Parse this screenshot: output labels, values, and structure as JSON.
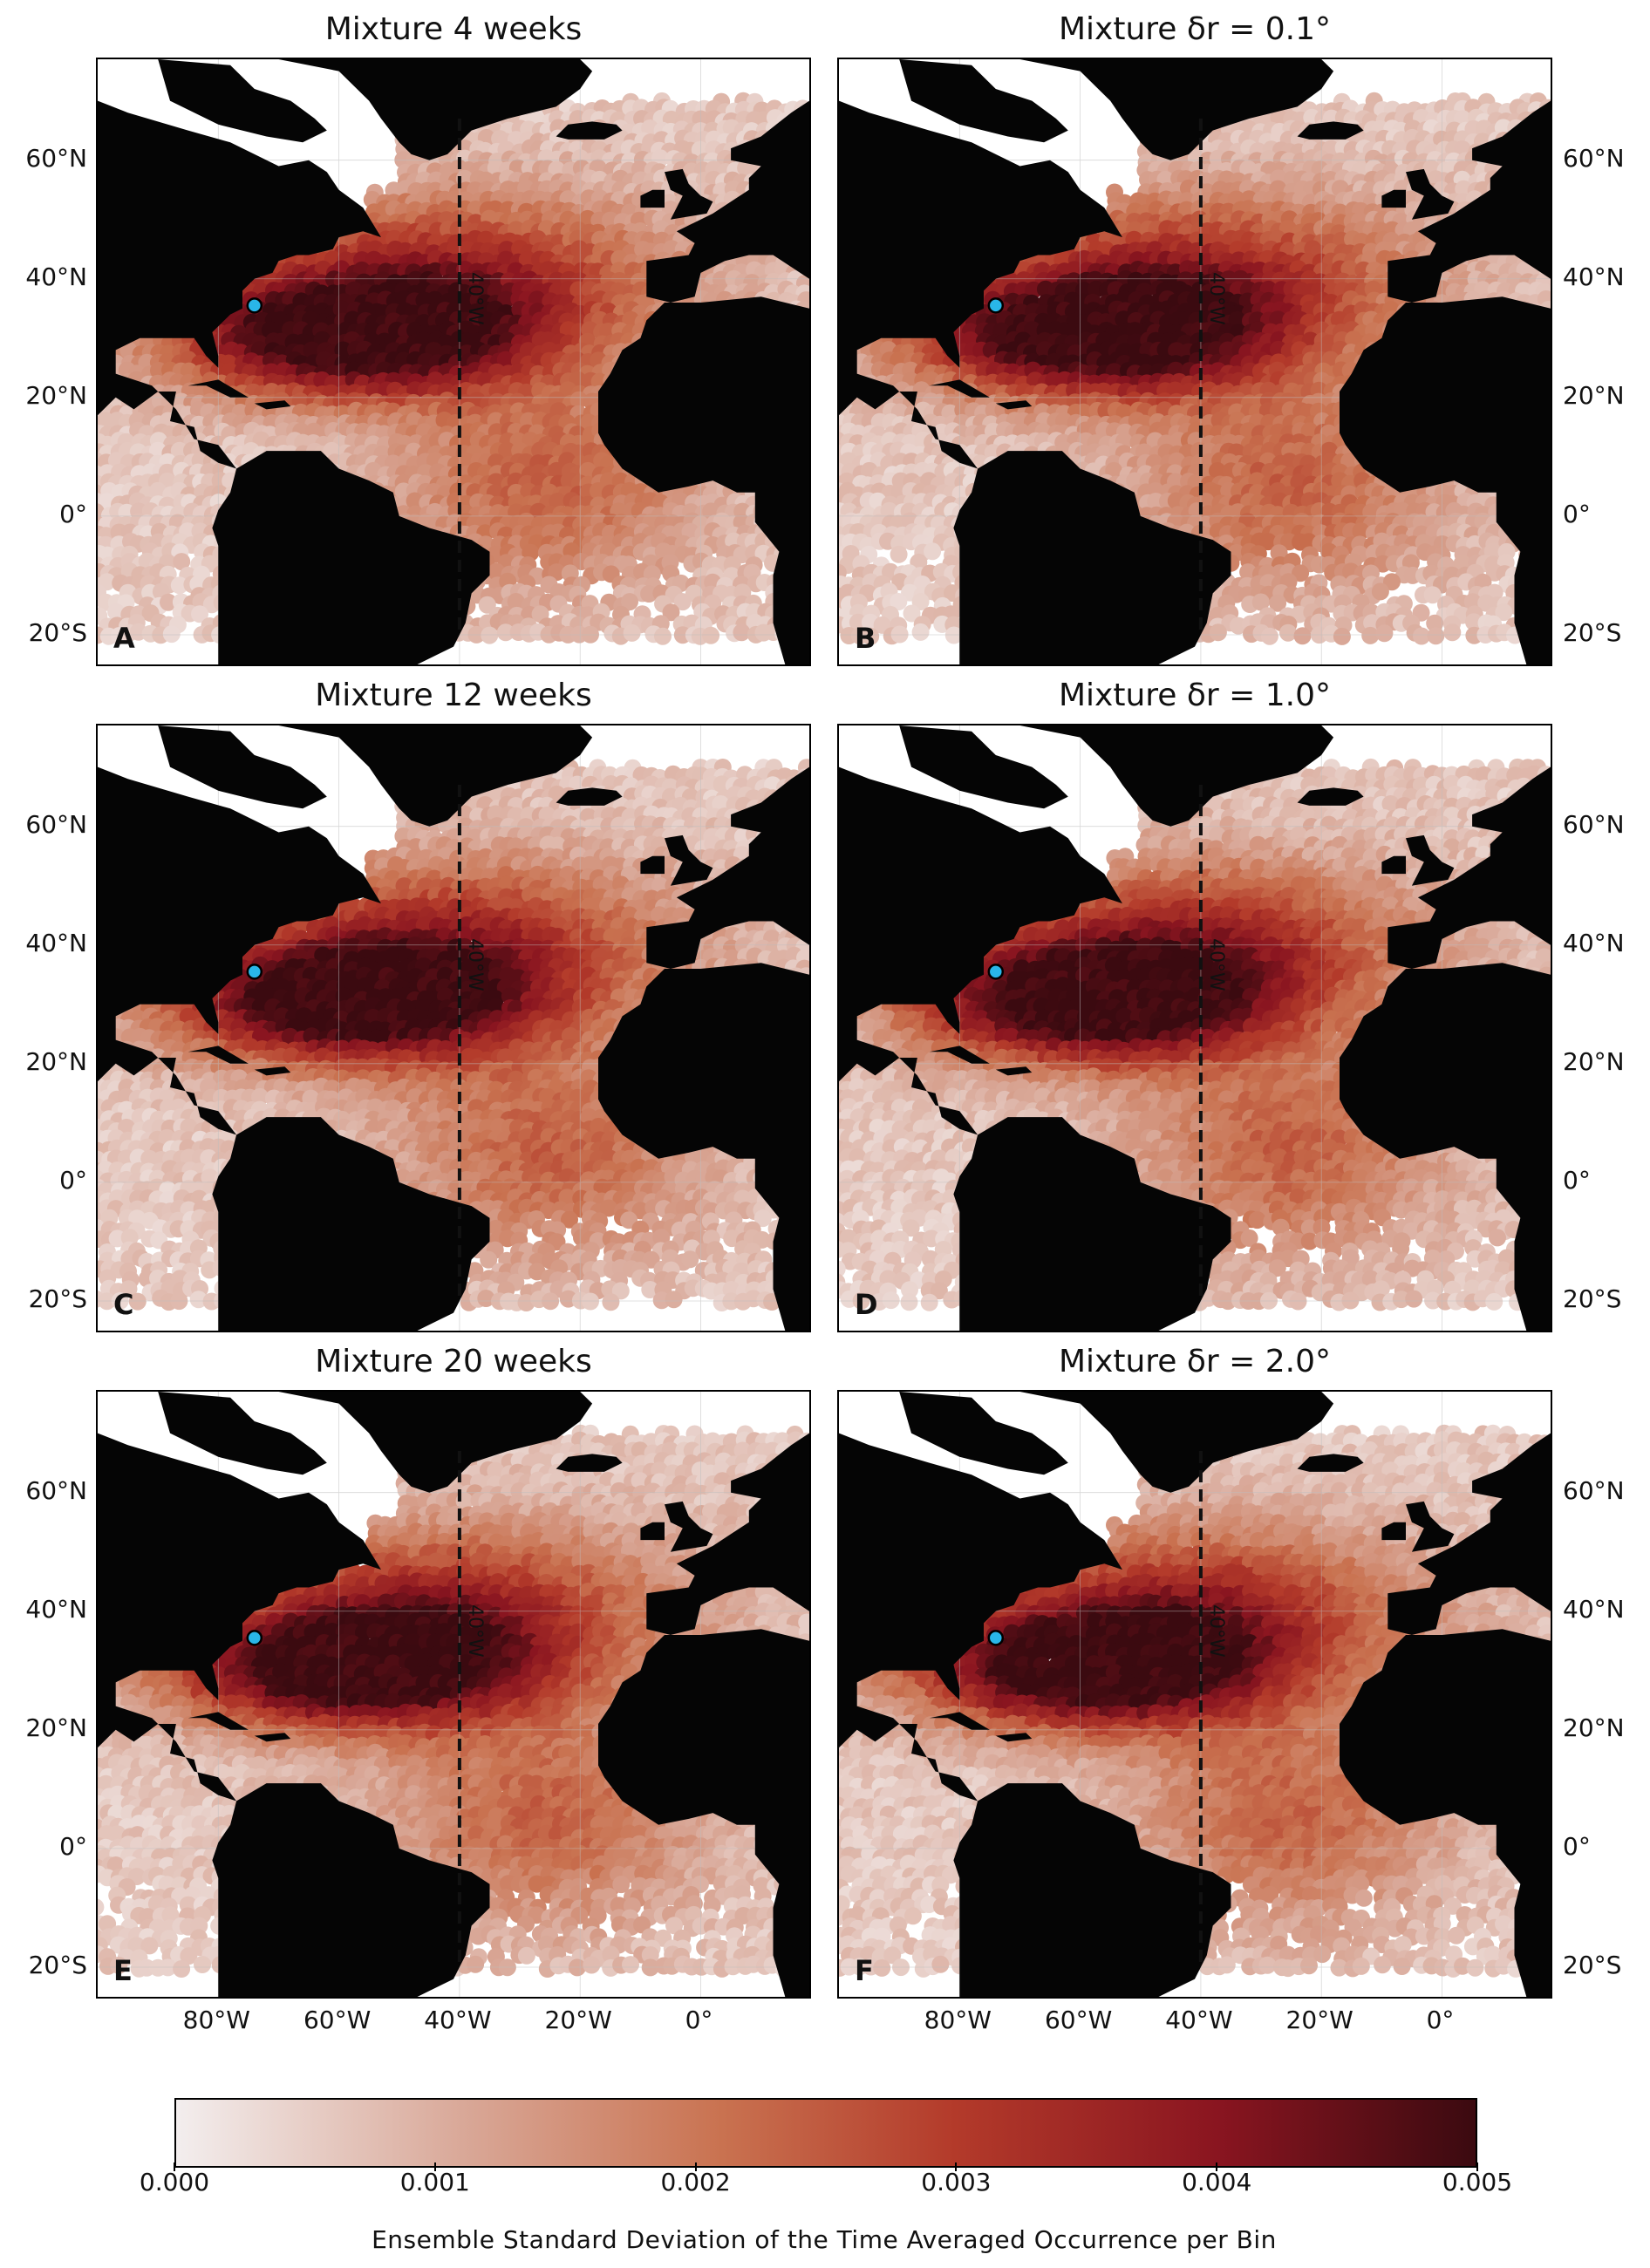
{
  "panels": [
    {
      "title": "Mixture 4 weeks",
      "letter": "A",
      "meridian_label": "40°W"
    },
    {
      "title": "Mixture δr = 0.1°",
      "letter": "B",
      "meridian_label": "40°W"
    },
    {
      "title": "Mixture 12 weeks",
      "letter": "C",
      "meridian_label": "40°W"
    },
    {
      "title": "Mixture δr = 1.0°",
      "letter": "D",
      "meridian_label": "40°W"
    },
    {
      "title": "Mixture 20 weeks",
      "letter": "E",
      "meridian_label": "40°W"
    },
    {
      "title": "Mixture δr = 2.0°",
      "letter": "F",
      "meridian_label": "40°W"
    }
  ],
  "latitude_ticks": [
    "60°N",
    "40°N",
    "20°N",
    "0°",
    "20°S"
  ],
  "longitude_ticks": [
    "80°W",
    "60°W",
    "40°W",
    "20°W",
    "0°"
  ],
  "colorbar": {
    "label": "Ensemble Standard Deviation of the Time Averaged Occurrence per Bin",
    "ticks": [
      "0.000",
      "0.001",
      "0.002",
      "0.003",
      "0.004",
      "0.005"
    ],
    "range": [
      0,
      0.005
    ]
  },
  "colors": {
    "land": "#050505",
    "ocean": "#ffffff",
    "marker": "#29b6e8",
    "dark": "#5a0f18",
    "mid": "#a3242a",
    "light": "#d9a08a"
  }
}
